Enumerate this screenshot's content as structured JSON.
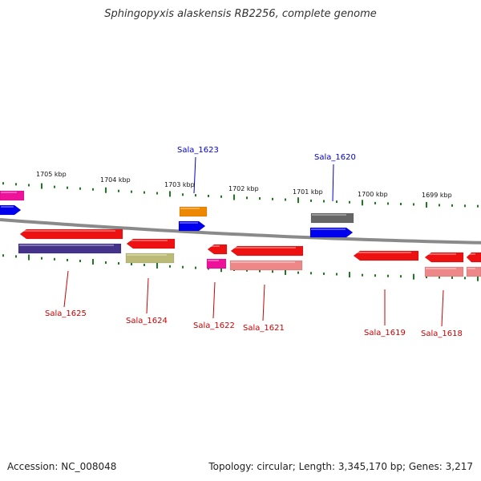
{
  "title": "Sphingopyxis alaskensis RB2256, complete genome",
  "accession": "Accession: NC_008048",
  "summary": "Topology: circular; Length: 3,345,170 bp; Genes: 3,217",
  "colors": {
    "backbone": "#8a8a8a",
    "tick": "#1e7a1e",
    "label_red": "#cc0000",
    "label_blue": "#0000cc",
    "red": "#ee1111",
    "pink": "#ee8888",
    "blue": "#0000ee",
    "magenta": "#ee1199",
    "orange": "#ee8800",
    "purple": "#443388",
    "olive": "#bbbb77",
    "gray": "#666666"
  },
  "scale_labels": [
    "1705 kbp",
    "1704 kbp",
    "1703 kbp",
    "1702 kbp",
    "1701 kbp",
    "1700 kbp",
    "1699 kbp"
  ],
  "gene_labels": [
    {
      "text": "Sala_1623",
      "color": "label_blue"
    },
    {
      "text": "Sala_1620",
      "color": "label_blue"
    },
    {
      "text": "Sala_1625",
      "color": "label_red"
    },
    {
      "text": "Sala_1624",
      "color": "label_red"
    },
    {
      "text": "Sala_1622",
      "color": "label_red"
    },
    {
      "text": "Sala_1621",
      "color": "label_red"
    },
    {
      "text": "Sala_1619",
      "color": "label_red"
    },
    {
      "text": "Sala_1618",
      "color": "label_red"
    }
  ]
}
